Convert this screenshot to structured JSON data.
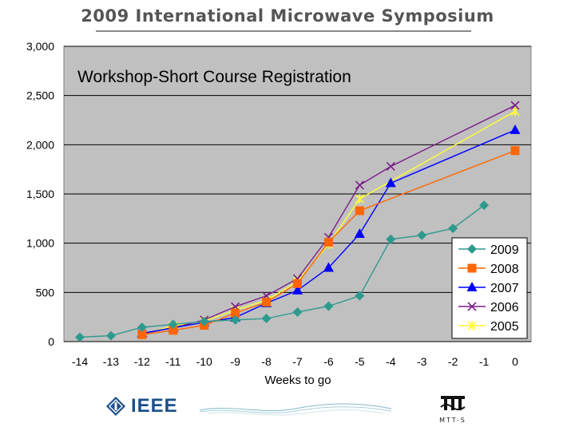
{
  "banner": "2009 International Microwave Symposium",
  "logos": {
    "left": "IEEE",
    "right": "MTT-S"
  },
  "colors": {
    "plot_bg": "#C0C0C0",
    "s2009": "#2E9A8E",
    "s2008": "#FF6600",
    "s2007": "#0000FF",
    "s2006": "#7A1E8A",
    "s2005": "#FFFF33"
  },
  "chart_data": {
    "type": "line",
    "title": "Workshop-Short Course Registration",
    "xlabel": "Weeks to go",
    "ylabel": "",
    "xlim": [
      -14,
      0
    ],
    "ylim": [
      0,
      3000
    ],
    "x": [
      -14,
      -13,
      -12,
      -11,
      -10,
      -9,
      -8,
      -7,
      -6,
      -5,
      -4,
      -3,
      -2,
      -1,
      0
    ],
    "x_tick_labels": [
      "-14",
      "-13",
      "-12",
      "-11",
      "-10",
      "-9",
      "-8",
      "-7",
      "-6",
      "-5",
      "-4",
      "-3",
      "-2",
      "-1",
      "0"
    ],
    "y_ticks": [
      0,
      500,
      1000,
      1500,
      2000,
      2500,
      3000
    ],
    "y_tick_labels": [
      "0",
      "500",
      "1,000",
      "1,500",
      "2,000",
      "2,500",
      "3,000"
    ],
    "grid": true,
    "legend_position": "bottom-right",
    "series": [
      {
        "name": "2009",
        "marker": "diamond",
        "color": "#2E9A8E",
        "x": [
          -14,
          -13,
          -12,
          -11,
          -10,
          -9,
          -8,
          -7,
          -6,
          -5,
          -4,
          -3,
          -2,
          -1
        ],
        "values": [
          45,
          60,
          145,
          175,
          205,
          220,
          235,
          300,
          360,
          465,
          1040,
          1080,
          1150,
          1385
        ]
      },
      {
        "name": "2008",
        "marker": "square",
        "color": "#FF6600",
        "x": [
          -12,
          -11,
          -10,
          -9,
          -8,
          -7,
          -6,
          -5,
          0
        ],
        "values": [
          70,
          115,
          165,
          290,
          400,
          590,
          1010,
          1330,
          1940
        ]
      },
      {
        "name": "2007",
        "marker": "triangle",
        "color": "#0000FF",
        "x": [
          -12,
          -11,
          -10,
          -9,
          -8,
          -7,
          -6,
          -5,
          -4,
          0
        ],
        "values": [
          85,
          140,
          195,
          245,
          390,
          520,
          750,
          1095,
          1610,
          2150
        ]
      },
      {
        "name": "2006",
        "marker": "x",
        "color": "#7A1E8A",
        "x": [
          -12,
          -11,
          -10,
          -9,
          -8,
          -7,
          -6,
          -5,
          -4,
          0
        ],
        "values": [
          80,
          140,
          220,
          355,
          465,
          640,
          1060,
          1590,
          1780,
          2400
        ]
      },
      {
        "name": "2005",
        "marker": "star",
        "color": "#FFFF33",
        "x": [
          -12,
          -11,
          -10,
          -9,
          -8,
          -7,
          -6,
          -5,
          0
        ],
        "values": [
          75,
          160,
          210,
          320,
          420,
          610,
          990,
          1450,
          2340
        ]
      }
    ]
  }
}
